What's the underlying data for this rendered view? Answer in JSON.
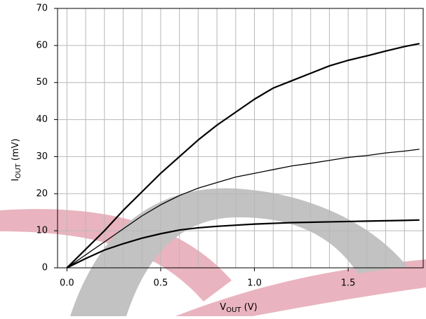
{
  "chart_data": {
    "type": "line",
    "ylabel": [
      "I",
      "OUT",
      " (mV)"
    ],
    "xlabel": [
      "V",
      "OUT",
      " (V)"
    ],
    "x": [
      0,
      0.1,
      0.2,
      0.3,
      0.4,
      0.5,
      0.6,
      0.7,
      0.8,
      0.9,
      1.0,
      1.1,
      1.2,
      1.3,
      1.4,
      1.5,
      1.6,
      1.7,
      1.8,
      1.88
    ],
    "series": [
      {
        "color": "#000000",
        "line_width": 2.2,
        "values": [
          0,
          5,
          10,
          15.5,
          20.5,
          25.5,
          30,
          34.5,
          38.5,
          42,
          45.5,
          48.5,
          50.5,
          52.5,
          54.5,
          56,
          57.2,
          58.5,
          59.7,
          60.5
        ]
      },
      {
        "color": "#000000",
        "line_width": 1.3,
        "values": [
          0,
          3.5,
          7,
          10.5,
          14,
          17,
          19.5,
          21.5,
          23,
          24.5,
          25.5,
          26.5,
          27.5,
          28.2,
          29,
          29.8,
          30.3,
          31,
          31.5,
          32
        ]
      },
      {
        "color": "#000000",
        "line_width": 2.2,
        "values": [
          0,
          2.5,
          4.8,
          6.5,
          8,
          9.2,
          10.2,
          10.8,
          11.2,
          11.5,
          11.8,
          12,
          12.2,
          12.3,
          12.4,
          12.5,
          12.6,
          12.7,
          12.8,
          12.9
        ]
      }
    ],
    "xlim": [
      -0.05,
      1.9
    ],
    "ylim": [
      0,
      70
    ],
    "xticks": [
      {
        "value": 0,
        "label": "0.0"
      },
      0.5,
      {
        "value": 1,
        "label": "1.0"
      },
      1.5
    ],
    "x_minor_grid": [
      0.1,
      0.2,
      0.3,
      0.4,
      0.6,
      0.7,
      0.8,
      0.9,
      1.1,
      1.2,
      1.3,
      1.4,
      1.6,
      1.7,
      1.8
    ],
    "yticks": [
      0,
      10,
      20,
      30,
      40,
      50,
      60,
      70
    ],
    "grid": true
  }
}
